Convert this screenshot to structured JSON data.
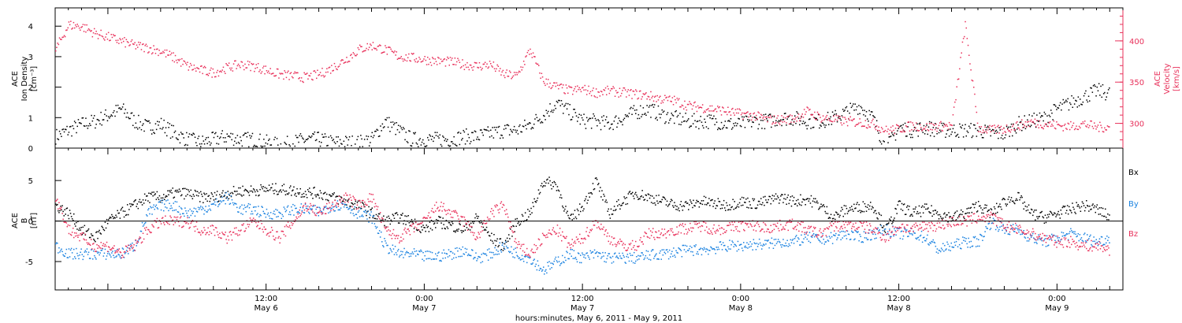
{
  "colors": {
    "black": "#000000",
    "pink": "#e8305a",
    "blue": "#1a82e0"
  },
  "x_axis": {
    "title": "hours:minutes, May  6, 2011 - May  9, 2011",
    "ticks": [
      {
        "time": "12:00",
        "date": "May 6"
      },
      {
        "time": "0:00",
        "date": "May 7"
      },
      {
        "time": "12:00",
        "date": "May 7"
      },
      {
        "time": "0:00",
        "date": "May 8"
      },
      {
        "time": "12:00",
        "date": "May 8"
      },
      {
        "time": "0:00",
        "date": "May 9"
      }
    ]
  },
  "chart_data": [
    {
      "type": "scatter",
      "panel": "top",
      "xlim": [
        "May 5 20:00",
        "May 9 05:00"
      ],
      "left_axis": {
        "label_line1": "ACE",
        "label_line2": "Ion Density",
        "unit": "[cm⁻³]",
        "ylim": [
          0,
          4.6
        ],
        "ticks": [
          0,
          1,
          2,
          3,
          4
        ]
      },
      "right_axis": {
        "label_line1": "ACE",
        "label_line2": "Velocity",
        "unit": "[km/s]",
        "ylim": [
          270,
          440
        ],
        "ticks": [
          300,
          350,
          400
        ],
        "color": "#e8305a"
      },
      "series": [
        {
          "color": "#000000",
          "axis": "left",
          "points_hours": [
            0,
            1,
            2,
            3,
            4,
            5,
            6,
            7,
            8,
            9,
            10,
            11,
            12,
            13,
            14,
            15,
            16,
            17,
            18,
            19,
            20,
            21,
            22,
            23,
            24,
            25,
            26,
            27,
            28,
            29,
            30,
            31,
            32,
            33,
            34,
            35,
            36,
            37,
            38,
            39,
            40,
            41,
            42,
            43,
            44,
            45,
            46,
            47,
            48,
            49,
            50,
            51,
            52,
            53,
            54,
            55,
            56,
            57,
            58,
            59,
            60,
            61,
            62,
            63,
            64,
            65,
            66,
            67,
            68,
            69,
            70,
            71,
            72,
            73,
            74,
            75,
            76,
            77,
            78,
            79,
            80
          ],
          "values": [
            0.4,
            0.6,
            0.8,
            0.9,
            1.1,
            1.3,
            0.9,
            0.7,
            0.8,
            0.5,
            0.3,
            0.2,
            0.3,
            0.4,
            0.3,
            0.3,
            0.2,
            0.1,
            0.2,
            0.3,
            0.3,
            0.2,
            0.2,
            0.2,
            0.3,
            0.9,
            0.6,
            0.3,
            0.3,
            0.3,
            0.3,
            0.4,
            0.4,
            0.5,
            0.6,
            0.6,
            0.8,
            1.1,
            1.5,
            1.2,
            0.9,
            0.9,
            0.8,
            1.0,
            1.2,
            1.3,
            1.1,
            1.0,
            0.9,
            0.9,
            0.9,
            0.8,
            0.8,
            0.9,
            0.9,
            1.0,
            1.0,
            0.9,
            0.9,
            1.0,
            1.2,
            1.4,
            1.0,
            0.0,
            0.7,
            0.6,
            0.7,
            0.6,
            0.6,
            0.6,
            0.6,
            0.5,
            0.5,
            0.8,
            0.9,
            1.0,
            1.3,
            1.5,
            1.7,
            1.9,
            1.8
          ]
        },
        {
          "color": "#e8305a",
          "axis": "right",
          "points_hours": [
            0,
            1,
            2,
            3,
            4,
            5,
            6,
            7,
            8,
            9,
            10,
            11,
            12,
            13,
            14,
            15,
            16,
            17,
            18,
            19,
            20,
            21,
            22,
            23,
            24,
            25,
            26,
            27,
            28,
            29,
            30,
            31,
            32,
            33,
            34,
            35,
            36,
            37,
            38,
            39,
            40,
            41,
            42,
            43,
            44,
            45,
            46,
            47,
            48,
            49,
            50,
            51,
            52,
            53,
            54,
            55,
            56,
            57,
            58,
            59,
            60,
            61,
            62,
            63,
            64,
            65,
            66,
            67,
            68,
            69,
            70,
            71,
            72,
            73,
            74,
            75,
            76,
            77,
            78,
            79,
            80
          ],
          "values": [
            390,
            420,
            418,
            410,
            405,
            400,
            395,
            392,
            388,
            380,
            370,
            365,
            362,
            368,
            372,
            370,
            365,
            360,
            358,
            356,
            360,
            368,
            378,
            390,
            395,
            390,
            382,
            380,
            378,
            376,
            375,
            372,
            370,
            372,
            360,
            358,
            390,
            352,
            345,
            340,
            342,
            338,
            340,
            338,
            336,
            334,
            330,
            328,
            322,
            320,
            318,
            315,
            312,
            310,
            305,
            305,
            306,
            315,
            308,
            305,
            303,
            302,
            300,
            292,
            294,
            298,
            296,
            297,
            298,
            420,
            295,
            292,
            294,
            298,
            302,
            300,
            298,
            297,
            300,
            296,
            296
          ]
        }
      ]
    },
    {
      "type": "scatter",
      "panel": "bottom",
      "xlim": [
        "May 5 20:00",
        "May 9 05:00"
      ],
      "left_axis": {
        "label_line1": "ACE",
        "label_line2": "B",
        "unit": "[nT]",
        "ylim": [
          -8.5,
          9
        ],
        "ticks": [
          -5,
          0,
          5
        ]
      },
      "legend": [
        "Bx",
        "By",
        "Bz"
      ],
      "legend_placement": "right",
      "series": [
        {
          "name": "Bx",
          "color": "#000000",
          "points_hours": [
            0,
            1,
            2,
            3,
            4,
            5,
            6,
            7,
            8,
            9,
            10,
            11,
            12,
            13,
            14,
            15,
            16,
            17,
            18,
            19,
            20,
            21,
            22,
            23,
            24,
            25,
            26,
            27,
            28,
            29,
            30,
            31,
            32,
            33,
            34,
            35,
            36,
            37,
            38,
            39,
            40,
            41,
            42,
            43,
            44,
            45,
            46,
            47,
            48,
            49,
            50,
            51,
            52,
            53,
            54,
            55,
            56,
            57,
            58,
            59,
            60,
            61,
            62,
            63,
            64,
            65,
            66,
            67,
            68,
            69,
            70,
            71,
            72,
            73,
            74,
            75,
            76,
            77,
            78,
            79,
            80
          ],
          "values": [
            2,
            1,
            -1,
            -2,
            0,
            1,
            2,
            3,
            3,
            3.5,
            3.5,
            3,
            3,
            3.5,
            3.8,
            3.8,
            4,
            4,
            3.8,
            3.6,
            3.5,
            3,
            2.5,
            2,
            1,
            0,
            0.5,
            0,
            -1,
            0,
            -0.5,
            -1,
            0.5,
            -2,
            -3,
            0,
            1,
            5,
            4.5,
            0,
            2,
            5,
            1,
            2.5,
            3.5,
            3,
            2.5,
            2,
            2,
            2.5,
            2.2,
            2,
            2.5,
            2.2,
            2.5,
            3,
            2.5,
            2.8,
            2,
            0.5,
            1.5,
            1.8,
            2,
            -1,
            2,
            1,
            1.5,
            1,
            0.5,
            1,
            2,
            1,
            2.5,
            3,
            1,
            0.5,
            1,
            1.5,
            2,
            1.5,
            0.5
          ]
        },
        {
          "name": "By",
          "color": "#1a82e0",
          "points_hours": [
            0,
            1,
            2,
            3,
            4,
            5,
            6,
            7,
            8,
            9,
            10,
            11,
            12,
            13,
            14,
            15,
            16,
            17,
            18,
            19,
            20,
            21,
            22,
            23,
            24,
            25,
            26,
            27,
            28,
            29,
            30,
            31,
            32,
            33,
            34,
            35,
            36,
            37,
            38,
            39,
            40,
            41,
            42,
            43,
            44,
            45,
            46,
            47,
            48,
            49,
            50,
            51,
            52,
            53,
            54,
            55,
            56,
            57,
            58,
            59,
            60,
            61,
            62,
            63,
            64,
            65,
            66,
            67,
            68,
            69,
            70,
            71,
            72,
            73,
            74,
            75,
            76,
            77,
            78,
            79,
            80
          ],
          "values": [
            -3,
            -4,
            -4,
            -4,
            -4,
            -4,
            -3,
            1,
            2,
            2,
            1,
            1.5,
            2,
            3,
            1.5,
            1.5,
            1,
            1,
            1.5,
            1.5,
            1.2,
            2,
            2,
            1,
            0.5,
            -3,
            -4,
            -4,
            -4.3,
            -4.3,
            -4,
            -3.5,
            -4.5,
            -4,
            -3,
            -4,
            -4.5,
            -6,
            -5,
            -4,
            -4.5,
            -4,
            -4.5,
            -4.5,
            -4.5,
            -4.2,
            -4,
            -3.8,
            -3.5,
            -3.5,
            -3.3,
            -3,
            -3,
            -2.8,
            -2.8,
            -2.5,
            -2.5,
            -2,
            -2.2,
            -2,
            -1.5,
            -2,
            -1.5,
            -1,
            -1.5,
            -1.5,
            -2,
            -3.5,
            -3,
            -2.5,
            -2.5,
            0,
            -1,
            -1,
            -2,
            -2.5,
            -2,
            -1.5,
            -2,
            -2.5,
            -2
          ]
        },
        {
          "name": "Bz",
          "color": "#e8305a",
          "points_hours": [
            0,
            1,
            2,
            3,
            4,
            5,
            6,
            7,
            8,
            9,
            10,
            11,
            12,
            13,
            14,
            15,
            16,
            17,
            18,
            19,
            20,
            21,
            22,
            23,
            24,
            25,
            26,
            27,
            28,
            29,
            30,
            31,
            32,
            33,
            34,
            35,
            36,
            37,
            38,
            39,
            40,
            41,
            42,
            43,
            44,
            45,
            46,
            47,
            48,
            49,
            50,
            51,
            52,
            53,
            54,
            55,
            56,
            57,
            58,
            59,
            60,
            61,
            62,
            63,
            64,
            65,
            66,
            67,
            68,
            69,
            70,
            71,
            72,
            73,
            74,
            75,
            76,
            77,
            78,
            79,
            80
          ],
          "values": [
            3,
            -1,
            -2,
            -3,
            -3,
            -4,
            -3,
            -1,
            0,
            0,
            0,
            -1,
            -1,
            -2,
            -1,
            0,
            -1,
            -2,
            0,
            2,
            1,
            2,
            3,
            2,
            3,
            -1,
            -2,
            -1,
            0,
            2,
            1,
            0,
            -2,
            1,
            2,
            -3,
            -4,
            -2,
            -1,
            -3,
            -2,
            0,
            -2,
            -3,
            -3,
            -1.5,
            -1.5,
            -1,
            -0.8,
            -0.5,
            -1,
            -0.8,
            -0.5,
            -0.5,
            -0.8,
            -0.5,
            -0.3,
            -1,
            -1.5,
            -0.5,
            -0.5,
            -0.5,
            -1,
            -2,
            -0.5,
            -1,
            -0.5,
            -0.5,
            0,
            0,
            0.5,
            0.5,
            -0.5,
            -1,
            -1.5,
            -2,
            -2.5,
            -2.5,
            -3,
            -3,
            -3.5
          ]
        }
      ]
    }
  ]
}
